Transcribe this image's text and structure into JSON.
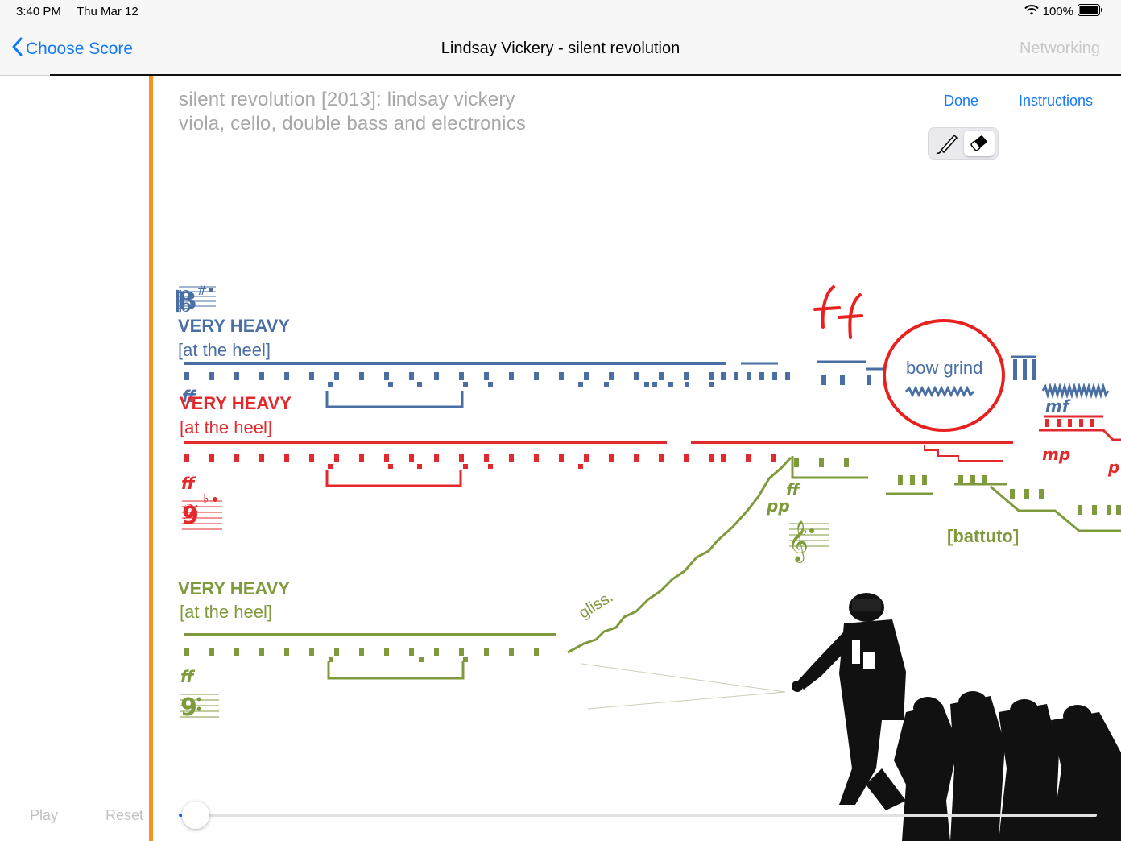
{
  "status": {
    "time": "3:40 PM",
    "date": "Thu Mar 12",
    "battery": "100%"
  },
  "nav": {
    "back_label": "Choose Score",
    "title": "Lindsay Vickery - silent revolution",
    "right_label": "Networking"
  },
  "controls": {
    "play": "Play",
    "reset": "Reset",
    "progress": 0.0
  },
  "score": {
    "header_line1": "silent revolution [2013]: lindsay vickery",
    "header_line2": "viola, cello, double bass and electronics",
    "done": "Done",
    "instructions": "Instructions",
    "tools": [
      "pen-tool-icon",
      "eraser-tool-icon"
    ],
    "viola": {
      "title": "VERY HEAVY",
      "sub": "[at the heel]",
      "dyn": "ff",
      "color": "#4a6fa5"
    },
    "cello": {
      "title": "VERY HEAVY",
      "sub": "[at the heel]",
      "dyn": "ff",
      "color": "#e3292b"
    },
    "bass": {
      "title": "VERY HEAVY",
      "sub": "[at the heel]",
      "dyn": "ff",
      "color": "#7f9a3d"
    },
    "annotations": {
      "bow_grind": "bow grind",
      "gliss": "gliss.",
      "battuto": "[battuto]",
      "mf": "mf",
      "mp": "mp",
      "pp": "pp",
      "ff_green": "ff",
      "ff_handwritten": "ff",
      "p_cut": "p"
    }
  }
}
